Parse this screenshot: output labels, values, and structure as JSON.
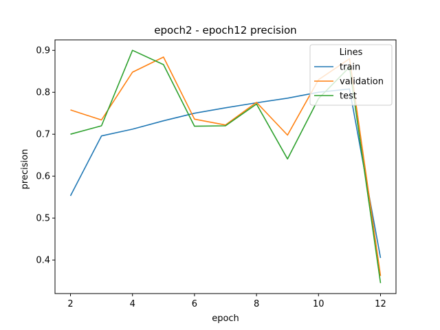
{
  "chart_data": {
    "type": "line",
    "title": "epoch2 - epoch12 precision",
    "xlabel": "epoch",
    "ylabel": "precision",
    "x": [
      2,
      3,
      4,
      5,
      6,
      7,
      8,
      9,
      10,
      11,
      12
    ],
    "xticks": [
      2,
      4,
      6,
      8,
      10,
      12
    ],
    "yticks": [
      0.4,
      0.5,
      0.6,
      0.7,
      0.8,
      0.9
    ],
    "xlim": [
      1.5,
      12.5
    ],
    "ylim": [
      0.32,
      0.925
    ],
    "grid": false,
    "legend": {
      "title": "Lines",
      "placement": "top-right"
    },
    "series": [
      {
        "name": "train",
        "color": "#1f77b4",
        "values": [
          0.553,
          0.696,
          0.712,
          0.732,
          0.75,
          0.763,
          0.775,
          0.786,
          0.8,
          0.808,
          0.405
        ]
      },
      {
        "name": "validation",
        "color": "#ff7f0e",
        "values": [
          0.758,
          0.734,
          0.848,
          0.884,
          0.736,
          0.722,
          0.776,
          0.698,
          0.83,
          0.88,
          0.362
        ]
      },
      {
        "name": "test",
        "color": "#2ca02c",
        "values": [
          0.7,
          0.72,
          0.9,
          0.866,
          0.719,
          0.72,
          0.772,
          0.641,
          0.785,
          0.86,
          0.345
        ]
      }
    ]
  }
}
